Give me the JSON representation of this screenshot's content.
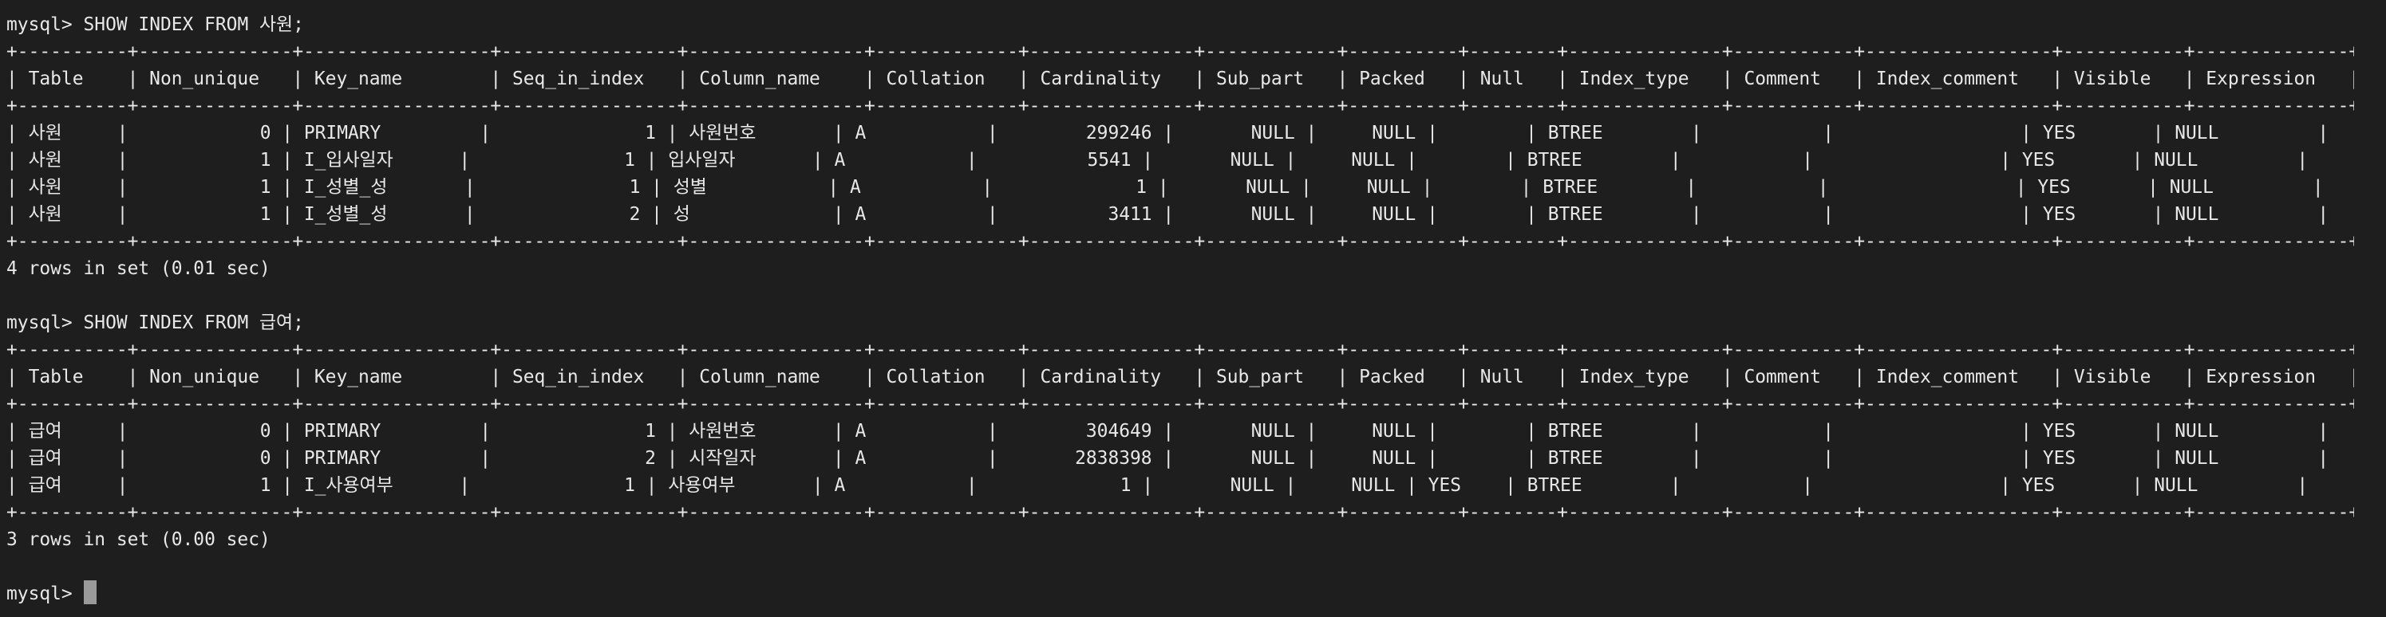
{
  "terminal": {
    "prompt": "mysql>",
    "queries": [
      {
        "command": "SHOW INDEX FROM 사원;",
        "summary": "4 rows in set (0.01 sec)",
        "rows": [
          [
            "사원",
            "0",
            "PRIMARY",
            "1",
            "사원번호",
            "A",
            "299246",
            "NULL",
            "NULL",
            "",
            "BTREE",
            "",
            "",
            "YES",
            "NULL"
          ],
          [
            "사원",
            "1",
            "I_입사일자",
            "1",
            "입사일자",
            "A",
            "5541",
            "NULL",
            "NULL",
            "",
            "BTREE",
            "",
            "",
            "YES",
            "NULL"
          ],
          [
            "사원",
            "1",
            "I_성별_성",
            "1",
            "성별",
            "A",
            "1",
            "NULL",
            "NULL",
            "",
            "BTREE",
            "",
            "",
            "YES",
            "NULL"
          ],
          [
            "사원",
            "1",
            "I_성별_성",
            "2",
            "성",
            "A",
            "3411",
            "NULL",
            "NULL",
            "",
            "BTREE",
            "",
            "",
            "YES",
            "NULL"
          ]
        ]
      },
      {
        "command": "SHOW INDEX FROM 급여;",
        "summary": "3 rows in set (0.00 sec)",
        "rows": [
          [
            "급여",
            "0",
            "PRIMARY",
            "1",
            "사원번호",
            "A",
            "304649",
            "NULL",
            "NULL",
            "",
            "BTREE",
            "",
            "",
            "YES",
            "NULL"
          ],
          [
            "급여",
            "0",
            "PRIMARY",
            "2",
            "시작일자",
            "A",
            "2838398",
            "NULL",
            "NULL",
            "",
            "BTREE",
            "",
            "",
            "YES",
            "NULL"
          ],
          [
            "급여",
            "1",
            "I_사용여부",
            "1",
            "사용여부",
            "A",
            "1",
            "NULL",
            "NULL",
            "YES",
            "BTREE",
            "",
            "",
            "YES",
            "NULL"
          ]
        ]
      }
    ],
    "columns": [
      "Table",
      "Non_unique",
      "Key_name",
      "Seq_in_index",
      "Column_name",
      "Collation",
      "Cardinality",
      "Sub_part",
      "Packed",
      "Null",
      "Index_type",
      "Comment",
      "Index_comment",
      "Visible",
      "Expression"
    ]
  }
}
